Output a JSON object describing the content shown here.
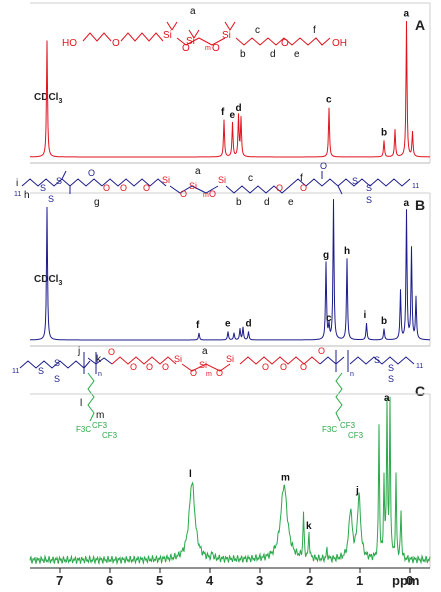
{
  "chart_data": [
    {
      "panel": "A",
      "type": "line",
      "color": "#e0141e",
      "solvent_label": "CDCl3",
      "structure_labels": {
        "groups": [
          "HO",
          "O",
          "Si",
          "O",
          "Si",
          "m",
          "O",
          "Si",
          "O",
          "OH"
        ],
        "letters": [
          "a",
          "b",
          "c",
          "d",
          "e",
          "f"
        ]
      },
      "peaks": [
        {
          "ppm": 7.26,
          "h": 0.85
        },
        {
          "ppm": 3.72,
          "h": 0.27,
          "label": "f"
        },
        {
          "ppm": 3.55,
          "h": 0.25,
          "label": "e"
        },
        {
          "ppm": 3.43,
          "h": 0.3,
          "label": "d"
        },
        {
          "ppm": 3.38,
          "h": 0.28
        },
        {
          "ppm": 1.62,
          "h": 0.36,
          "label": "c"
        },
        {
          "ppm": 0.52,
          "h": 0.12,
          "label": "b"
        },
        {
          "ppm": 0.3,
          "h": 0.2
        },
        {
          "ppm": 0.07,
          "h": 0.99,
          "label": "a"
        },
        {
          "ppm": -0.05,
          "h": 0.18
        }
      ]
    },
    {
      "panel": "B",
      "type": "line",
      "color": "#1c1c8c",
      "solvent_label": "CDCl3",
      "structure_labels": {
        "groups": [
          "S",
          "S",
          "S",
          "O",
          "O",
          "O",
          "O",
          "Si",
          "O",
          "Si",
          "m",
          "O",
          "Si",
          "O",
          "O",
          "O",
          "S",
          "S",
          "S"
        ],
        "subscripts": [
          "11",
          "11"
        ],
        "letters": [
          "i",
          "h",
          "g",
          "a",
          "b",
          "c",
          "d",
          "e",
          "f"
        ]
      },
      "peaks": [
        {
          "ppm": 7.26,
          "h": 0.95
        },
        {
          "ppm": 4.22,
          "h": 0.05,
          "label": "f"
        },
        {
          "ppm": 3.64,
          "h": 0.06,
          "label": "e"
        },
        {
          "ppm": 3.52,
          "h": 0.05
        },
        {
          "ppm": 3.4,
          "h": 0.08
        },
        {
          "ppm": 3.34,
          "h": 0.09
        },
        {
          "ppm": 3.23,
          "h": 0.06,
          "label": "d"
        },
        {
          "ppm": 1.68,
          "h": 0.55,
          "label": "g"
        },
        {
          "ppm": 1.62,
          "h": 0.1,
          "label": "c"
        },
        {
          "ppm": 1.53,
          "h": 1.0
        },
        {
          "ppm": 1.26,
          "h": 0.58,
          "label": "h"
        },
        {
          "ppm": 0.87,
          "h": 0.12,
          "label": "i"
        },
        {
          "ppm": 0.52,
          "h": 0.08,
          "label": "b"
        },
        {
          "ppm": 0.19,
          "h": 0.35
        },
        {
          "ppm": 0.07,
          "h": 0.92,
          "label": "a"
        },
        {
          "ppm": -0.03,
          "h": 0.65
        },
        {
          "ppm": -0.12,
          "h": 0.3
        }
      ]
    },
    {
      "panel": "C",
      "type": "line",
      "color": "#2aa84a",
      "structure_labels": {
        "groups": [
          "S",
          "S",
          "S",
          "O",
          "O",
          "O",
          "O",
          "Si",
          "O",
          "Si",
          "O",
          "Si",
          "O",
          "O",
          "O",
          "O",
          "S",
          "S",
          "S",
          "F3C",
          "CF3",
          "CF3",
          "F3C",
          "CF3",
          "CF3"
        ],
        "subscripts": [
          "11",
          "m",
          "n",
          "n",
          "11"
        ],
        "letters": [
          "j",
          "k",
          "l",
          "m",
          "a"
        ]
      },
      "peaks": [
        {
          "ppm": 4.36,
          "h": 0.48,
          "label": "l",
          "w": 0.07
        },
        {
          "ppm": 3.95,
          "h": 0.04
        },
        {
          "ppm": 2.52,
          "h": 0.46,
          "label": "m",
          "w": 0.08
        },
        {
          "ppm": 2.13,
          "h": 0.28
        },
        {
          "ppm": 2.02,
          "h": 0.16,
          "label": "k"
        },
        {
          "ppm": 1.66,
          "h": 0.06
        },
        {
          "ppm": 1.19,
          "h": 0.3,
          "w": 0.04
        },
        {
          "ppm": 1.02,
          "h": 0.38,
          "label": "j",
          "w": 0.04
        },
        {
          "ppm": 0.62,
          "h": 0.82
        },
        {
          "ppm": 0.52,
          "h": 0.48
        },
        {
          "ppm": 0.46,
          "h": 0.95,
          "label": "a"
        },
        {
          "ppm": 0.4,
          "h": 0.95
        },
        {
          "ppm": 0.28,
          "h": 0.5
        },
        {
          "ppm": 0.18,
          "h": 0.3
        }
      ]
    }
  ],
  "axis": {
    "label": "ppm",
    "ticks": [
      "7",
      "6",
      "5",
      "4",
      "3",
      "2",
      "1",
      "0"
    ],
    "tick_values": [
      7,
      6,
      5,
      4,
      3,
      2,
      1,
      0
    ],
    "range": [
      7.6,
      -0.4
    ]
  }
}
